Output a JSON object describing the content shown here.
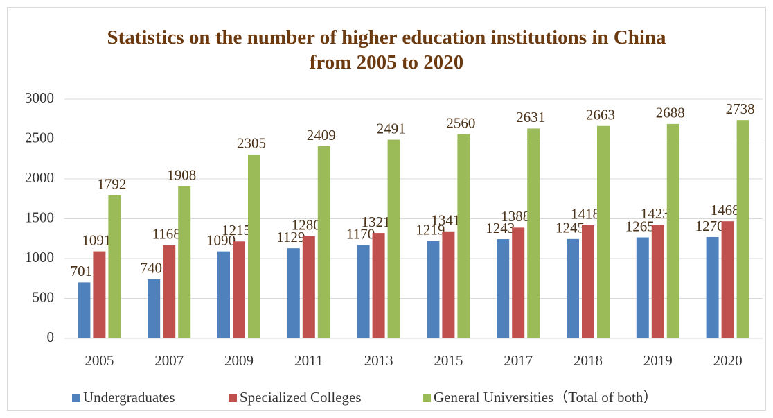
{
  "chart_data": {
    "type": "bar",
    "title": "Statistics on the number of higher education institutions in China from 2005 to 2020",
    "categories": [
      "2005",
      "2007",
      "2009",
      "2011",
      "2013",
      "2015",
      "2017",
      "2018",
      "2019",
      "2020"
    ],
    "series": [
      {
        "name": "Undergraduates",
        "color": "#4f81bd",
        "values": [
          701,
          740,
          1090,
          1129,
          1170,
          1219,
          1243,
          1245,
          1265,
          1270
        ]
      },
      {
        "name": "Specialized Colleges",
        "color": "#c0504d",
        "values": [
          1091,
          1168,
          1215,
          1280,
          1321,
          1341,
          1388,
          1418,
          1423,
          1468
        ]
      },
      {
        "name": "General Universities（Total of both）",
        "color": "#9bbb59",
        "values": [
          1792,
          1908,
          2305,
          2409,
          2491,
          2560,
          2631,
          2663,
          2688,
          2738
        ]
      }
    ],
    "ylim": [
      0,
      3000
    ],
    "yticks": [
      0,
      500,
      1000,
      1500,
      2000,
      2500,
      3000
    ],
    "grid": true,
    "legend": "bottom"
  }
}
